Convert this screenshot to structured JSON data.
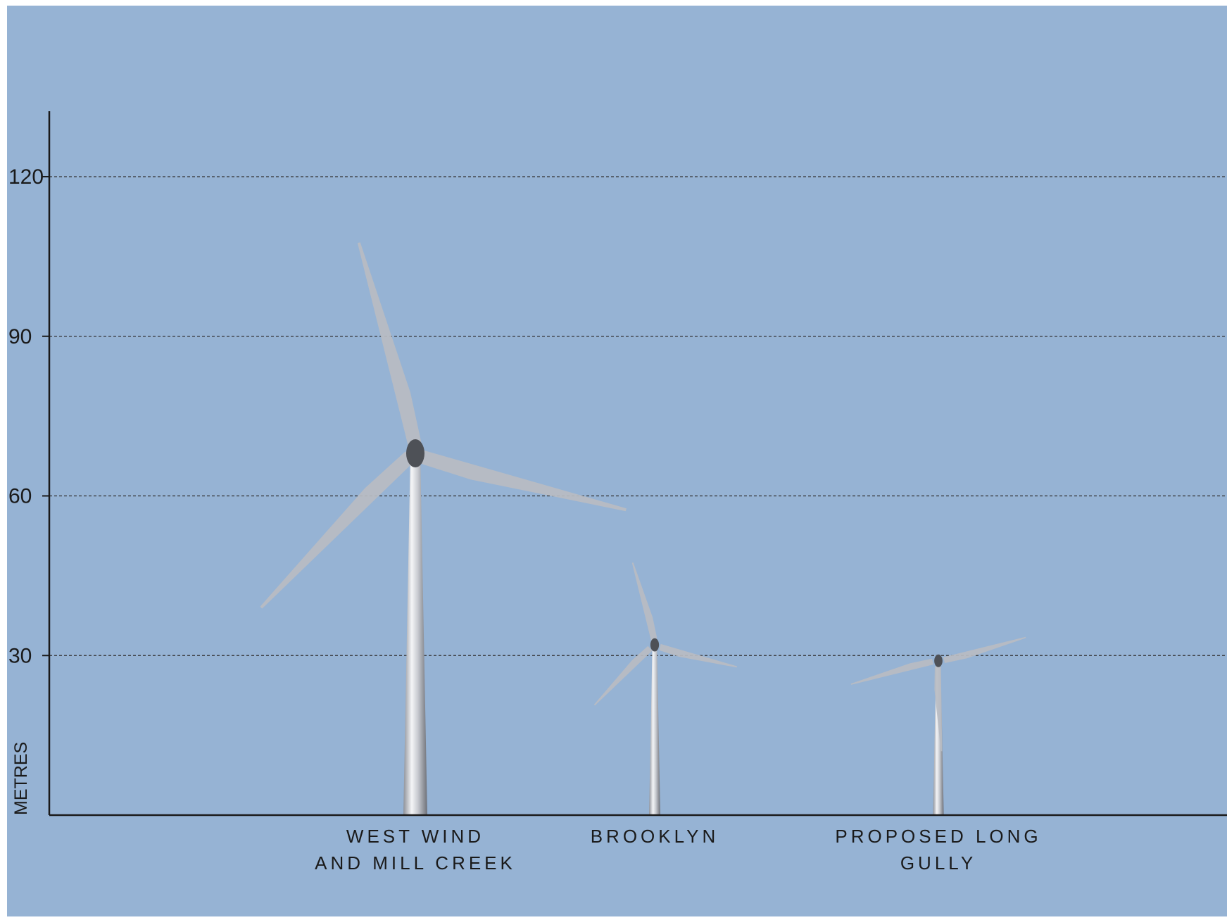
{
  "chart_data": {
    "type": "bar",
    "title": "",
    "xlabel": "",
    "ylabel": "METRES",
    "ylim": [
      0,
      135
    ],
    "yticks": [
      30,
      60,
      90,
      120
    ],
    "grid": true,
    "categories": [
      "WEST WIND AND MILL CREEK",
      "BROOKLYN",
      "PROPOSED LONG GULLY"
    ],
    "category_label_lines": [
      [
        "WEST WIND",
        "AND MILL CREEK"
      ],
      [
        "BROOKLYN"
      ],
      [
        "PROPOSED LONG",
        "GULLY"
      ]
    ],
    "series": [
      {
        "values": [
          68,
          32,
          29
        ]
      }
    ],
    "rotor_radius": [
      41,
      16,
      17
    ],
    "colors": {
      "background": "#96b3d4",
      "axis": "#1a1a1a",
      "gridline": "#333333",
      "tower": "#d2d6dc",
      "blade": "#b9bcc2"
    }
  }
}
